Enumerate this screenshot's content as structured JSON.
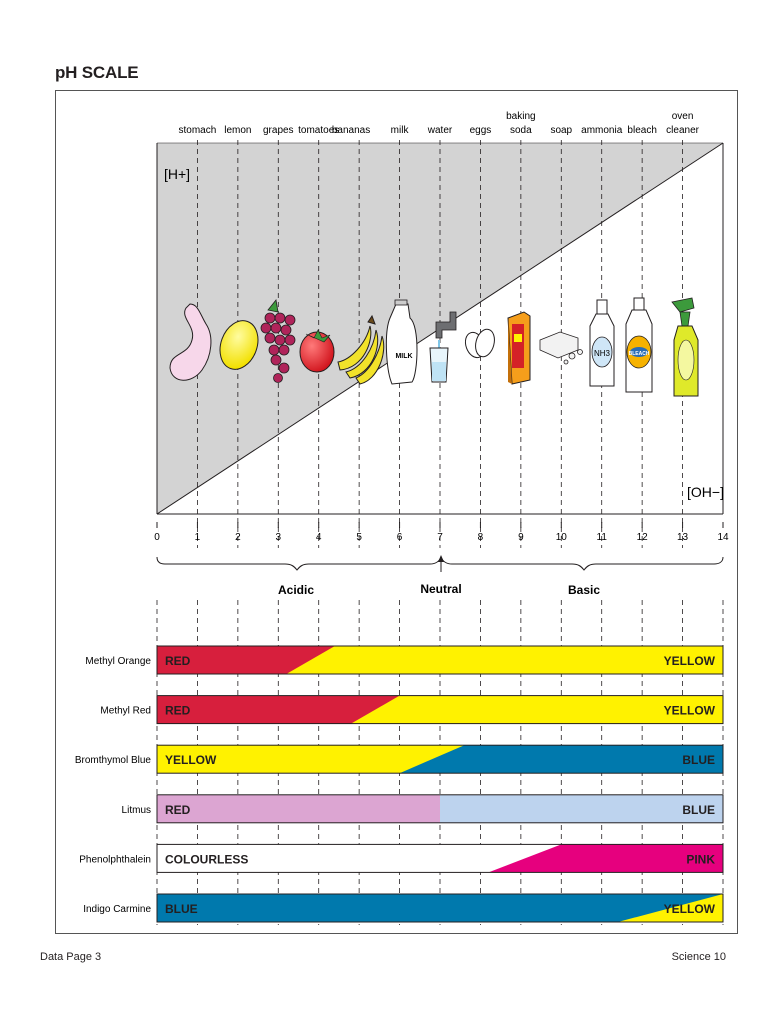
{
  "page": {
    "title": "pH SCALE",
    "footer_left": "Data Page 3",
    "footer_right": "Science 10"
  },
  "scale": {
    "min": 0,
    "max": 14,
    "ticks": [
      "0",
      "1",
      "2",
      "3",
      "4",
      "5",
      "6",
      "7",
      "8",
      "9",
      "10",
      "11",
      "12",
      "13",
      "14"
    ],
    "h_ion_label": "[H+]",
    "oh_ion_label": "[OH−]",
    "regions": {
      "acidic": "Acidic",
      "neutral": "Neutral",
      "basic": "Basic"
    },
    "neutral_ph": 7
  },
  "substances": [
    {
      "ph": 1,
      "lines": [
        "stomach"
      ],
      "icon": "stomach-icon"
    },
    {
      "ph": 2,
      "lines": [
        "lemon"
      ],
      "icon": "lemon-icon"
    },
    {
      "ph": 3,
      "lines": [
        "grapes"
      ],
      "icon": "grapes-icon"
    },
    {
      "ph": 4,
      "lines": [
        "tomatoes"
      ],
      "icon": "tomato-icon"
    },
    {
      "ph": 4.8,
      "lines": [
        "bananas"
      ],
      "icon": "bananas-icon"
    },
    {
      "ph": 6,
      "lines": [
        "milk"
      ],
      "icon": "milk-jug-icon",
      "icon_text": "MILK"
    },
    {
      "ph": 7,
      "lines": [
        "water"
      ],
      "icon": "water-tap-icon"
    },
    {
      "ph": 8,
      "lines": [
        "eggs"
      ],
      "icon": "eggs-icon"
    },
    {
      "ph": 9,
      "lines": [
        "baking",
        "soda"
      ],
      "icon": "baking-soda-box-icon"
    },
    {
      "ph": 10,
      "lines": [
        "soap"
      ],
      "icon": "soap-icon"
    },
    {
      "ph": 11,
      "lines": [
        "ammonia"
      ],
      "icon": "ammonia-bottle-icon",
      "icon_text": "NH3"
    },
    {
      "ph": 12,
      "lines": [
        "bleach"
      ],
      "icon": "bleach-bottle-icon",
      "icon_text": "BLEACH"
    },
    {
      "ph": 13,
      "lines": [
        "oven",
        "cleaner"
      ],
      "icon": "spray-bottle-icon"
    }
  ],
  "indicators": [
    {
      "name": "Methyl Orange",
      "low": "RED",
      "high": "YELLOW",
      "low_color": "#d71f3d",
      "high_color": "#fff200",
      "range": [
        3.2,
        4.4
      ]
    },
    {
      "name": "Methyl Red",
      "low": "RED",
      "high": "YELLOW",
      "low_color": "#d71f3d",
      "high_color": "#fff200",
      "range": [
        4.8,
        6.0
      ]
    },
    {
      "name": "Bromthymol Blue",
      "low": "YELLOW",
      "high": "BLUE",
      "low_color": "#fff200",
      "high_color": "#0079ad",
      "range": [
        6.0,
        7.6
      ]
    },
    {
      "name": "Litmus",
      "low": "RED",
      "high": "BLUE",
      "low_color": "#dca5d2",
      "high_color": "#bdd3ee",
      "range": [
        7.0,
        7.0
      ]
    },
    {
      "name": "Phenolphthalein",
      "low": "COLOURLESS",
      "high": "PINK",
      "low_color": "#ffffff",
      "high_color": "#e6007e",
      "range": [
        8.2,
        10.0
      ]
    },
    {
      "name": "Indigo Carmine",
      "low": "BLUE",
      "high": "YELLOW",
      "low_color": "#0079ad",
      "high_color": "#fff200",
      "range": [
        11.4,
        14.0
      ]
    }
  ],
  "colors": {
    "acid_triangle": "#d3d3d3",
    "outline": "#231f20"
  }
}
